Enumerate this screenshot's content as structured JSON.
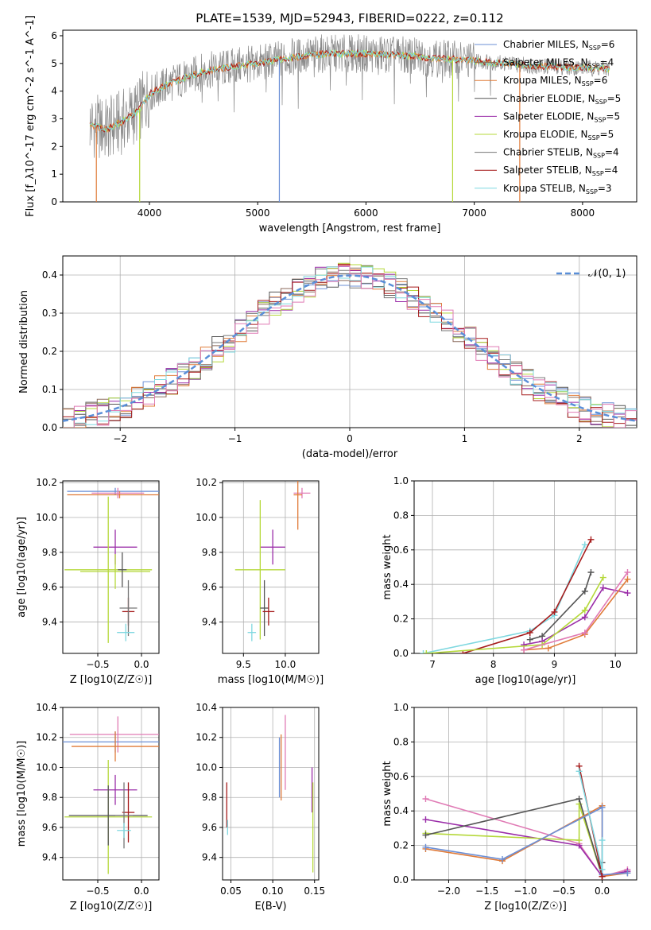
{
  "figure": {
    "title": "PLATE=1539, MJD=52943, FIBERID=0222, z=0.112"
  },
  "colors": {
    "Chabrier MILES": "#6b8fd6",
    "Salpeter MILES": "#8b6a5b",
    "Kroupa MILES": "#e07b39",
    "Chabrier ELODIE": "#555555",
    "Salpeter ELODIE": "#9a2ca8",
    "Kroupa ELODIE": "#b5d83a",
    "Chabrier STELIB": "#777777",
    "Salpeter STELIB": "#a61c1c",
    "Kroupa STELIB": "#7fd8e0",
    "model_line": "#5a8fd8",
    "hist_pink": "#e07bb5"
  },
  "chart_data": [
    {
      "id": "spectrum",
      "type": "line",
      "title": "PLATE=1539, MJD=52943, FIBERID=0222, z=0.112",
      "xlabel": "wavelength [Angstrom, rest frame]",
      "ylabel": "Flux [f_λ10^-17 erg cm^-2 s^-1 A^-1]",
      "xlim": [
        3200,
        8500
      ],
      "ylim": [
        0,
        6.2
      ],
      "xticks": [
        4000,
        5000,
        6000,
        7000,
        8000
      ],
      "yticks": [
        0,
        1,
        2,
        3,
        4,
        5,
        6
      ],
      "grid": false,
      "legend_position": "top-right",
      "legend": [
        "Chabrier MILES, N_SSP=6",
        "Salpeter MILES, N_SSP=4",
        "Kroupa MILES, N_SSP=6",
        "Chabrier ELODIE, N_SSP=5",
        "Salpeter ELODIE, N_SSP=5",
        "Kroupa ELODIE, N_SSP=5",
        "Chabrier STELIB, N_SSP=4",
        "Salpeter STELIB, N_SSP=4",
        "Kroupa STELIB, N_SSP=3"
      ],
      "continuum_x": [
        3450,
        3600,
        3750,
        3900,
        4000,
        4200,
        4500,
        4800,
        5000,
        5300,
        5600,
        6000,
        6300,
        6600,
        7000,
        7300,
        7600,
        8000,
        8250
      ],
      "continuum_y": [
        2.8,
        2.6,
        2.9,
        3.3,
        3.9,
        4.3,
        4.7,
        4.9,
        5.0,
        5.2,
        5.35,
        5.35,
        5.3,
        5.2,
        5.1,
        5.0,
        4.9,
        4.85,
        4.8
      ]
    },
    {
      "id": "residuals",
      "type": "histogram",
      "xlabel": "(data-model)/error",
      "ylabel": "Normed distribution",
      "xlim": [
        -2.5,
        2.5
      ],
      "ylim": [
        0,
        0.45
      ],
      "xticks": [
        -2,
        -1,
        0,
        1,
        2
      ],
      "yticks": [
        0.0,
        0.1,
        0.2,
        0.3,
        0.4
      ],
      "grid": true,
      "legend_position": "top-right",
      "legend": [
        "𝒩(0, 1)"
      ],
      "bin_width": 0.1
    },
    {
      "id": "age_vs_Z",
      "type": "errorbar",
      "xlabel": "Z [log10(Z/Z☉)]",
      "ylabel": "age  [log10(age/yr)]",
      "xlim": [
        -0.9,
        0.2
      ],
      "ylim": [
        9.22,
        10.21
      ],
      "xticks": [
        -0.5,
        0.0
      ],
      "yticks": [
        9.4,
        9.6,
        9.8,
        10.0,
        10.2
      ],
      "grid": true,
      "points": [
        {
          "series": "Chabrier MILES",
          "x": -0.3,
          "y": 10.15,
          "xerr": 0.55,
          "yerr": 0.02
        },
        {
          "series": "Kroupa MILES",
          "x": -0.25,
          "y": 10.13,
          "xerr": 0.6,
          "yerr": 0.02
        },
        {
          "series": "hist_pink",
          "x": -0.27,
          "y": 10.14,
          "xerr": 0.3,
          "yerr": 0.03
        },
        {
          "series": "Salpeter ELODIE",
          "x": -0.3,
          "y": 9.83,
          "xerr": 0.25,
          "yerr": 0.1
        },
        {
          "series": "Kroupa ELODIE",
          "x": -0.38,
          "y": 9.7,
          "xerr": 0.5,
          "yerr": 0.42
        },
        {
          "series": "Kroupa ELODIE",
          "x": -0.3,
          "y": 9.69,
          "xerr": 0.4,
          "yerr": 0.1
        },
        {
          "series": "Chabrier ELODIE",
          "x": -0.22,
          "y": 9.7,
          "xerr": 0.05,
          "yerr": 0.1
        },
        {
          "series": "Salpeter STELIB",
          "x": -0.15,
          "y": 9.46,
          "xerr": 0.07,
          "yerr": 0.08
        },
        {
          "series": "Chabrier STELIB",
          "x": -0.15,
          "y": 9.48,
          "xerr": 0.1,
          "yerr": 0.16
        },
        {
          "series": "Kroupa STELIB",
          "x": -0.18,
          "y": 9.34,
          "xerr": 0.1,
          "yerr": 0.05
        }
      ]
    },
    {
      "id": "age_vs_mass",
      "type": "errorbar",
      "xlabel": "mass [log10(M/M☉)]",
      "ylabel": "",
      "xlim": [
        9.25,
        10.4
      ],
      "ylim": [
        9.22,
        10.21
      ],
      "xticks": [
        9.5,
        10.0
      ],
      "yticks": [
        9.4,
        9.6,
        9.8,
        10.0,
        10.2
      ],
      "grid": true,
      "points": [
        {
          "series": "hist_pink",
          "x": 10.2,
          "y": 10.14,
          "xerr": 0.1,
          "yerr": 0.03
        },
        {
          "series": "Kroupa MILES",
          "x": 10.15,
          "y": 10.13,
          "xerr": 0.05,
          "yerr": 0.2
        },
        {
          "series": "Salpeter ELODIE",
          "x": 9.85,
          "y": 9.83,
          "xerr": 0.15,
          "yerr": 0.1
        },
        {
          "series": "Kroupa ELODIE",
          "x": 9.7,
          "y": 9.7,
          "xerr": 0.3,
          "yerr": 0.4
        },
        {
          "series": "Chabrier ELODIE",
          "x": 9.75,
          "y": 9.48,
          "xerr": 0.05,
          "yerr": 0.16
        },
        {
          "series": "Salpeter STELIB",
          "x": 9.8,
          "y": 9.46,
          "xerr": 0.07,
          "yerr": 0.08
        },
        {
          "series": "Kroupa STELIB",
          "x": 9.6,
          "y": 9.34,
          "xerr": 0.05,
          "yerr": 0.05
        }
      ]
    },
    {
      "id": "massweight_vs_age",
      "type": "line",
      "xlabel": "age  [log10(age/yr)]",
      "ylabel": "mass weight",
      "xlim": [
        6.7,
        10.35
      ],
      "ylim": [
        0,
        1.0
      ],
      "xticks": [
        7,
        8,
        9,
        10
      ],
      "yticks": [
        0.0,
        0.2,
        0.4,
        0.6,
        0.8,
        1.0
      ],
      "grid": true,
      "series": [
        {
          "series": "Kroupa STELIB",
          "x": [
            6.85,
            8.6,
            9.0,
            9.5
          ],
          "y": [
            0.0,
            0.13,
            0.22,
            0.63
          ]
        },
        {
          "series": "Salpeter STELIB",
          "x": [
            7.5,
            8.6,
            9.0,
            9.6
          ],
          "y": [
            0.0,
            0.12,
            0.24,
            0.66
          ]
        },
        {
          "series": "Chabrier ELODIE",
          "x": [
            8.6,
            8.8,
            9.5,
            9.6
          ],
          "y": [
            0.08,
            0.1,
            0.36,
            0.47
          ]
        },
        {
          "series": "Salpeter ELODIE",
          "x": [
            8.5,
            8.8,
            9.5,
            9.8,
            10.2
          ],
          "y": [
            0.05,
            0.07,
            0.21,
            0.38,
            0.35
          ]
        },
        {
          "series": "Kroupa ELODIE",
          "x": [
            6.9,
            8.8,
            9.5,
            9.8
          ],
          "y": [
            0.0,
            0.05,
            0.25,
            0.44
          ]
        },
        {
          "series": "Kroupa MILES",
          "x": [
            8.5,
            8.9,
            9.5,
            10.2
          ],
          "y": [
            0.02,
            0.03,
            0.11,
            0.43
          ]
        },
        {
          "series": "hist_pink",
          "x": [
            8.5,
            9.5,
            10.2
          ],
          "y": [
            0.02,
            0.12,
            0.47
          ]
        }
      ]
    },
    {
      "id": "mass_vs_Z",
      "type": "errorbar",
      "xlabel": "Z [log10(Z/Z☉)]",
      "ylabel": "mass [log10(M/M☉)]",
      "xlim": [
        -0.9,
        0.2
      ],
      "ylim": [
        9.25,
        10.4
      ],
      "xticks": [
        -0.5,
        0.0
      ],
      "yticks": [
        9.4,
        9.6,
        9.8,
        10.0,
        10.2,
        10.4
      ],
      "grid": true,
      "points": [
        {
          "series": "hist_pink",
          "x": -0.27,
          "y": 10.22,
          "xerr": 0.55,
          "yerr": 0.12
        },
        {
          "series": "Chabrier MILES",
          "x": -0.3,
          "y": 10.17,
          "xerr": 0.6,
          "yerr": 0.07
        },
        {
          "series": "Kroupa MILES",
          "x": -0.3,
          "y": 10.14,
          "xerr": 0.5,
          "yerr": 0.1
        },
        {
          "series": "Salpeter ELODIE",
          "x": -0.3,
          "y": 9.85,
          "xerr": 0.25,
          "yerr": 0.1
        },
        {
          "series": "Kroupa ELODIE",
          "x": -0.38,
          "y": 9.67,
          "xerr": 0.5,
          "yerr": 0.38
        },
        {
          "series": "Chabrier ELODIE",
          "x": -0.38,
          "y": 9.68,
          "xerr": 0.45,
          "yerr": 0.2
        },
        {
          "series": "Salpeter STELIB",
          "x": -0.15,
          "y": 9.7,
          "xerr": 0.07,
          "yerr": 0.2
        },
        {
          "series": "Chabrier STELIB",
          "x": -0.2,
          "y": 9.68,
          "xerr": 0.1,
          "yerr": 0.22
        },
        {
          "series": "Kroupa STELIB",
          "x": -0.2,
          "y": 9.58,
          "xerr": 0.08,
          "yerr": 0.05
        }
      ]
    },
    {
      "id": "mass_vs_EBV",
      "type": "errorbar",
      "xlabel": "E(B-V)",
      "ylabel": "",
      "xlim": [
        0.04,
        0.155
      ],
      "ylim": [
        9.25,
        10.4
      ],
      "xticks": [
        0.05,
        0.1,
        0.15
      ],
      "yticks": [
        9.4,
        9.6,
        9.8,
        10.0,
        10.2,
        10.4
      ],
      "grid": true,
      "points": [
        {
          "series": "Salpeter STELIB",
          "x": 0.045,
          "y": 9.75,
          "xerr": 0,
          "yerr": 0.15
        },
        {
          "series": "Kroupa STELIB",
          "x": 0.046,
          "y": 9.6,
          "xerr": 0,
          "yerr": 0.05
        },
        {
          "series": "Kroupa MILES",
          "x": 0.11,
          "y": 10.0,
          "xerr": 0,
          "yerr": 0.22
        },
        {
          "series": "Chabrier MILES",
          "x": 0.108,
          "y": 10.0,
          "xerr": 0,
          "yerr": 0.2
        },
        {
          "series": "hist_pink",
          "x": 0.115,
          "y": 10.1,
          "xerr": 0,
          "yerr": 0.25
        },
        {
          "series": "Salpeter ELODIE",
          "x": 0.147,
          "y": 9.85,
          "xerr": 0,
          "yerr": 0.15
        },
        {
          "series": "Kroupa ELODIE",
          "x": 0.148,
          "y": 9.6,
          "xerr": 0,
          "yerr": 0.3
        }
      ]
    },
    {
      "id": "massweight_vs_Z",
      "type": "line",
      "xlabel": "Z [log10(Z/Z☉)]",
      "ylabel": "mass weight",
      "xlim": [
        -2.45,
        0.45
      ],
      "ylim": [
        0,
        1.0
      ],
      "xticks": [
        -2.0,
        -1.5,
        -1.0,
        -0.5,
        0.0
      ],
      "yticks": [
        0.0,
        0.2,
        0.4,
        0.6,
        0.8,
        1.0
      ],
      "grid": true,
      "series": [
        {
          "series": "hist_pink",
          "x": [
            -2.3,
            -0.3,
            0.0,
            0.33
          ],
          "y": [
            0.47,
            0.21,
            0.02,
            0.06
          ]
        },
        {
          "series": "Salpeter ELODIE",
          "x": [
            -2.3,
            -0.3,
            0.0,
            0.33
          ],
          "y": [
            0.35,
            0.2,
            0.02,
            0.05
          ]
        },
        {
          "series": "Kroupa ELODIE",
          "x": [
            -2.3,
            -0.3,
            -0.3,
            0.0
          ],
          "y": [
            0.27,
            0.23,
            0.44,
            0.02
          ]
        },
        {
          "series": "Chabrier ELODIE",
          "x": [
            -2.3,
            -0.3,
            0.0,
            0.0
          ],
          "y": [
            0.26,
            0.47,
            0.02,
            0.1
          ]
        },
        {
          "series": "Kroupa MILES",
          "x": [
            -2.3,
            -1.3,
            0.0,
            0.0,
            0.33
          ],
          "y": [
            0.18,
            0.11,
            0.43,
            0.02,
            0.04
          ]
        },
        {
          "series": "Chabrier MILES",
          "x": [
            -2.3,
            -1.3,
            0.0,
            0.0,
            0.33
          ],
          "y": [
            0.19,
            0.12,
            0.42,
            0.03,
            0.04
          ]
        },
        {
          "series": "Salpeter STELIB",
          "x": [
            -0.3,
            0.0
          ],
          "y": [
            0.66,
            0.02
          ]
        },
        {
          "series": "Kroupa STELIB",
          "x": [
            -0.3,
            0.0,
            0.0
          ],
          "y": [
            0.63,
            0.06,
            0.23
          ]
        }
      ]
    }
  ]
}
